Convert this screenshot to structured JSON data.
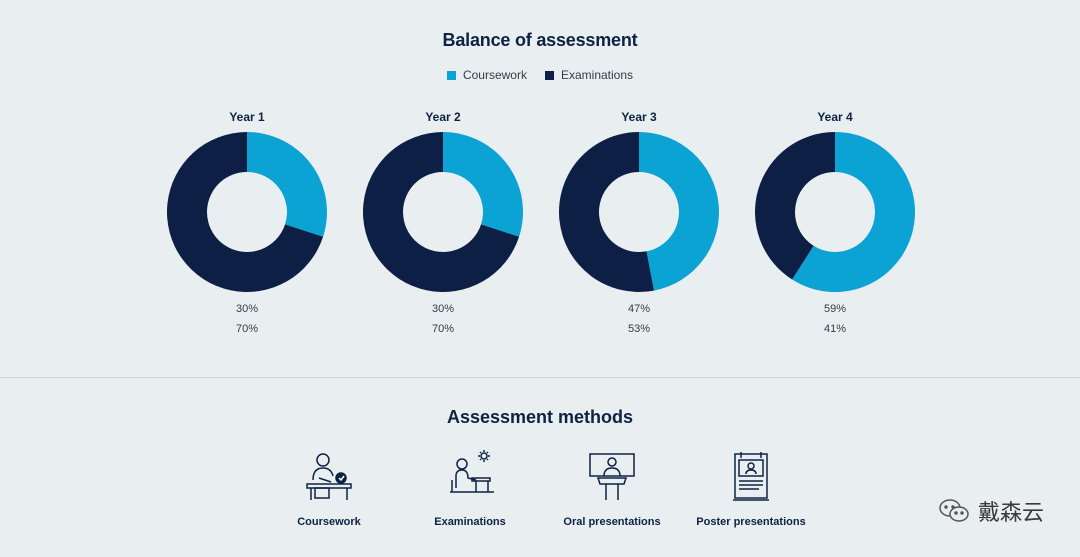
{
  "chart_data": {
    "type": "pie",
    "title": "Balance of assessment",
    "series_names": [
      "Coursework",
      "Examinations"
    ],
    "colors": [
      "#0aa3d3",
      "#0d1f45"
    ],
    "legend_position": "top-center",
    "charts": [
      {
        "label": "Year 1",
        "values": [
          30,
          70
        ],
        "labels": [
          "30%",
          "70%"
        ]
      },
      {
        "label": "Year 2",
        "values": [
          30,
          70
        ],
        "labels": [
          "30%",
          "70%"
        ]
      },
      {
        "label": "Year 3",
        "values": [
          47,
          53
        ],
        "labels": [
          "47%",
          "53%"
        ]
      },
      {
        "label": "Year 4",
        "values": [
          59,
          41
        ],
        "labels": [
          "59%",
          "41%"
        ]
      }
    ]
  },
  "methods": {
    "title": "Assessment methods",
    "items": [
      {
        "label": "Coursework",
        "icon": "coursework-icon"
      },
      {
        "label": "Examinations",
        "icon": "examinations-icon"
      },
      {
        "label": "Oral presentations",
        "icon": "oral-presentation-icon"
      },
      {
        "label": "Poster presentations",
        "icon": "poster-presentation-icon"
      }
    ]
  },
  "watermark": {
    "text": "戴森云",
    "icon": "wechat-icon"
  }
}
